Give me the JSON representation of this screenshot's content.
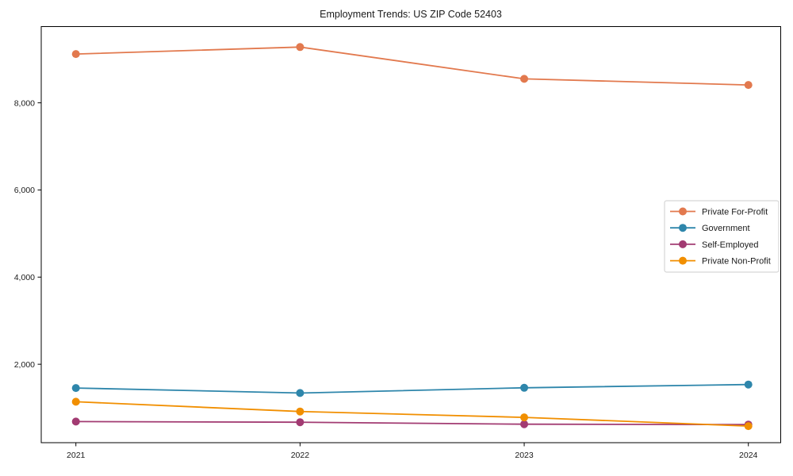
{
  "chart_data": {
    "type": "line",
    "title": "Employment Trends: US ZIP Code 52403",
    "x": [
      2021,
      2022,
      2023,
      2024
    ],
    "x_tick_labels": [
      "2021",
      "2022",
      "2023",
      "2024"
    ],
    "y_ticks": [
      2000,
      4000,
      6000,
      8000
    ],
    "y_tick_labels": [
      "2,000",
      "4,000",
      "6,000",
      "8,000"
    ],
    "ylim": [
      200,
      9750
    ],
    "grid": false,
    "legend_position": "center-right",
    "background": "#ffffff",
    "spine_color": "#000000",
    "legend_border_color": "#cccccc",
    "series": [
      {
        "name": "Private For-Profit",
        "color": "#E2794E",
        "values": [
          9120,
          9280,
          8550,
          8410
        ]
      },
      {
        "name": "Government",
        "color": "#2E86AB",
        "values": [
          1455,
          1340,
          1460,
          1535
        ]
      },
      {
        "name": "Self-Employed",
        "color": "#A23B72",
        "values": [
          685,
          670,
          625,
          615
        ]
      },
      {
        "name": "Private Non-Profit",
        "color": "#F18F01",
        "values": [
          1140,
          915,
          780,
          580
        ]
      }
    ]
  }
}
